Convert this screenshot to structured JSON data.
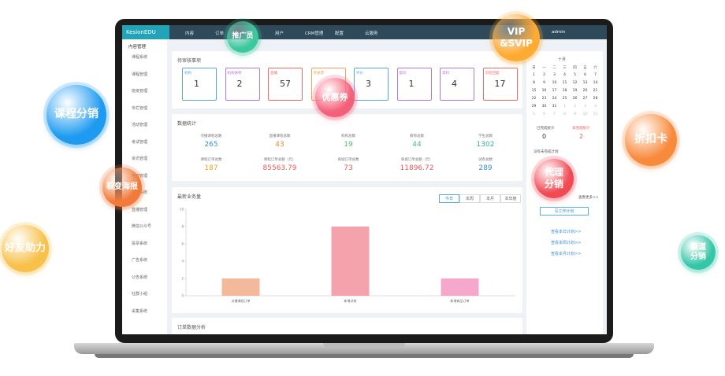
{
  "app": {
    "brand": "KesionEDU",
    "nav": [
      "内容",
      "订单",
      "互动",
      "用户",
      "CRM管理",
      "配置",
      "云服务"
    ],
    "user": "admin",
    "sidebar_title": "内容管理",
    "sidebar": [
      "课程系统",
      "课程管理",
      "班级管理",
      "专栏管理",
      "活动管理",
      "考试管理",
      "资讯管理",
      "电商管理",
      "问答系统",
      "直播管理",
      "微信公众号",
      "投票系统",
      "广告系统",
      "公告系统",
      "社群小组",
      "采集系统"
    ],
    "pending": {
      "title": "待审核事项",
      "items": [
        {
          "label": "机构",
          "count": "1",
          "color": "#5aa6e6"
        },
        {
          "label": "机构讲师",
          "count": "2",
          "color": "#b07ad8"
        },
        {
          "label": "直播",
          "count": "57",
          "color": "#ef6b6b"
        },
        {
          "label": "开发票",
          "count": "",
          "color": "#f5a05a"
        },
        {
          "label": "评价",
          "count": "3",
          "color": "#5aa6e6"
        },
        {
          "label": "提问",
          "count": "1",
          "color": "#b07ad8"
        },
        {
          "label": "资料",
          "count": "4",
          "color": "#b07ad8"
        },
        {
          "label": "问答回复",
          "count": "17",
          "color": "#ef6b6b"
        }
      ]
    },
    "stats": {
      "title": "数据统计",
      "items": [
        {
          "label": "点播课程总数",
          "value": "265",
          "color": "#3a8fd8"
        },
        {
          "label": "直播课程总数",
          "value": "43",
          "color": "#f08a3c"
        },
        {
          "label": "机构总数",
          "value": "19",
          "color": "#4cbf6c"
        },
        {
          "label": "教师总数",
          "value": "44",
          "color": "#4cbf6c"
        },
        {
          "label": "学生总数",
          "value": "1302",
          "color": "#3aa8a8"
        },
        {
          "label": "课程订单总数",
          "value": "187",
          "color": "#f0a030"
        },
        {
          "label": "课程订单总额（元）",
          "value": "85563.79",
          "color": "#ef5a5a"
        },
        {
          "label": "商城订单总数",
          "value": "73",
          "color": "#ef5a5a"
        },
        {
          "label": "商城订单总额（元）",
          "value": "11896.72",
          "color": "#ef5a5a"
        },
        {
          "label": "试卷总数",
          "value": "289",
          "color": "#3a8fd8"
        }
      ]
    },
    "business_chart": {
      "title": "最新业务量",
      "tabs": [
        "今日",
        "本周",
        "本月",
        "本年度"
      ],
      "categories": [
        "点播课程订单",
        "新增试卷",
        "新增商品订单"
      ],
      "values": [
        2,
        8,
        2
      ],
      "colors": [
        "#f4b89a",
        "#f4a3ac",
        "#f5a8cc"
      ],
      "ylim": [
        0,
        10
      ],
      "yticks": [
        0,
        2,
        4,
        6,
        8,
        10
      ]
    },
    "order_title": "订单数据分析",
    "calendar": {
      "month": "十月",
      "weekdays": [
        "日",
        "一",
        "二",
        "三",
        "四",
        "五",
        "六"
      ],
      "days": [
        "1",
        "2",
        "3",
        "4",
        "5",
        "6",
        "7",
        "8",
        "9",
        "10",
        "11",
        "12",
        "13",
        "14",
        "15",
        "16",
        "17",
        "18",
        "19",
        "20",
        "21",
        "22",
        "23",
        "24",
        "25",
        "26",
        "27",
        "28",
        "29",
        "30",
        "31",
        "1",
        "2",
        "3",
        "4",
        "5",
        "6",
        "7",
        "8",
        "9",
        "10",
        "11"
      ]
    },
    "plan": {
      "done_label": "已完成统计",
      "done": "0",
      "todo_label": "未完成统计",
      "todo": "2",
      "note": "没有未完成计划",
      "more": "查看更多>>",
      "button": "写工作计划",
      "links": [
        "查看本日计划>>",
        "查看本周计划>>",
        "查看本月计划>>"
      ]
    }
  },
  "bubbles": [
    {
      "label": "推广员",
      "color": "#3cc89e"
    },
    {
      "label": "VIP\n&SVIP",
      "color": "#ffaa33"
    },
    {
      "label": "课程分销",
      "color": "#1e9bf0"
    },
    {
      "label": "裂变海报",
      "color": "#f27a3a"
    },
    {
      "label": "好友助力",
      "color": "#f7c14a"
    },
    {
      "label": "优惠券",
      "color": "#f4607a"
    },
    {
      "label": "折扣卡",
      "color": "#f88a3c"
    },
    {
      "label": "代理\n分销",
      "color": "#f04a55"
    },
    {
      "label": "渠道\n分销",
      "color": "#35c6a8"
    }
  ]
}
